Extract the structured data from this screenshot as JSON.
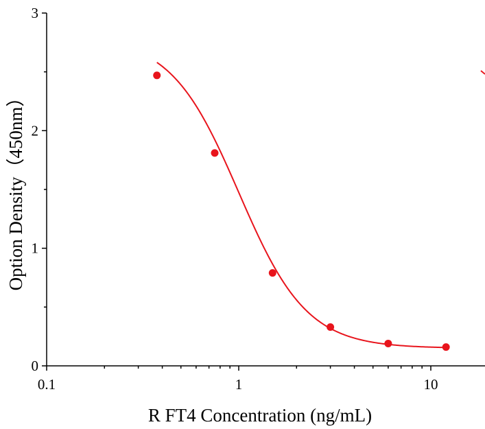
{
  "chart_data": {
    "type": "scatter",
    "title": "",
    "xlabel": "R FT4 Concentration (ng/mL)",
    "ylabel": "Option Density（450nm）",
    "x_scale": "log",
    "xlim": [
      0.1,
      20
    ],
    "ylim": [
      0,
      3
    ],
    "x_ticks": [
      {
        "value": 0.1,
        "label": "0.1"
      },
      {
        "value": 1,
        "label": "1"
      },
      {
        "value": 10,
        "label": "10"
      }
    ],
    "y_ticks": [
      {
        "value": 0,
        "label": "0"
      },
      {
        "value": 1,
        "label": "1"
      },
      {
        "value": 2,
        "label": "2"
      },
      {
        "value": 3,
        "label": "3"
      }
    ],
    "grid": false,
    "legend": "none",
    "color": "#e8141c",
    "series": [
      {
        "x": [
          0.375,
          0.75,
          1.5,
          3,
          6,
          12
        ],
        "y": [
          2.47,
          1.81,
          0.79,
          0.33,
          0.19,
          0.16
        ]
      }
    ],
    "fit": {
      "model": "4PL",
      "top": 2.8,
      "bottom": 0.15,
      "ec50": 1.0,
      "hill": 2.45
    }
  }
}
